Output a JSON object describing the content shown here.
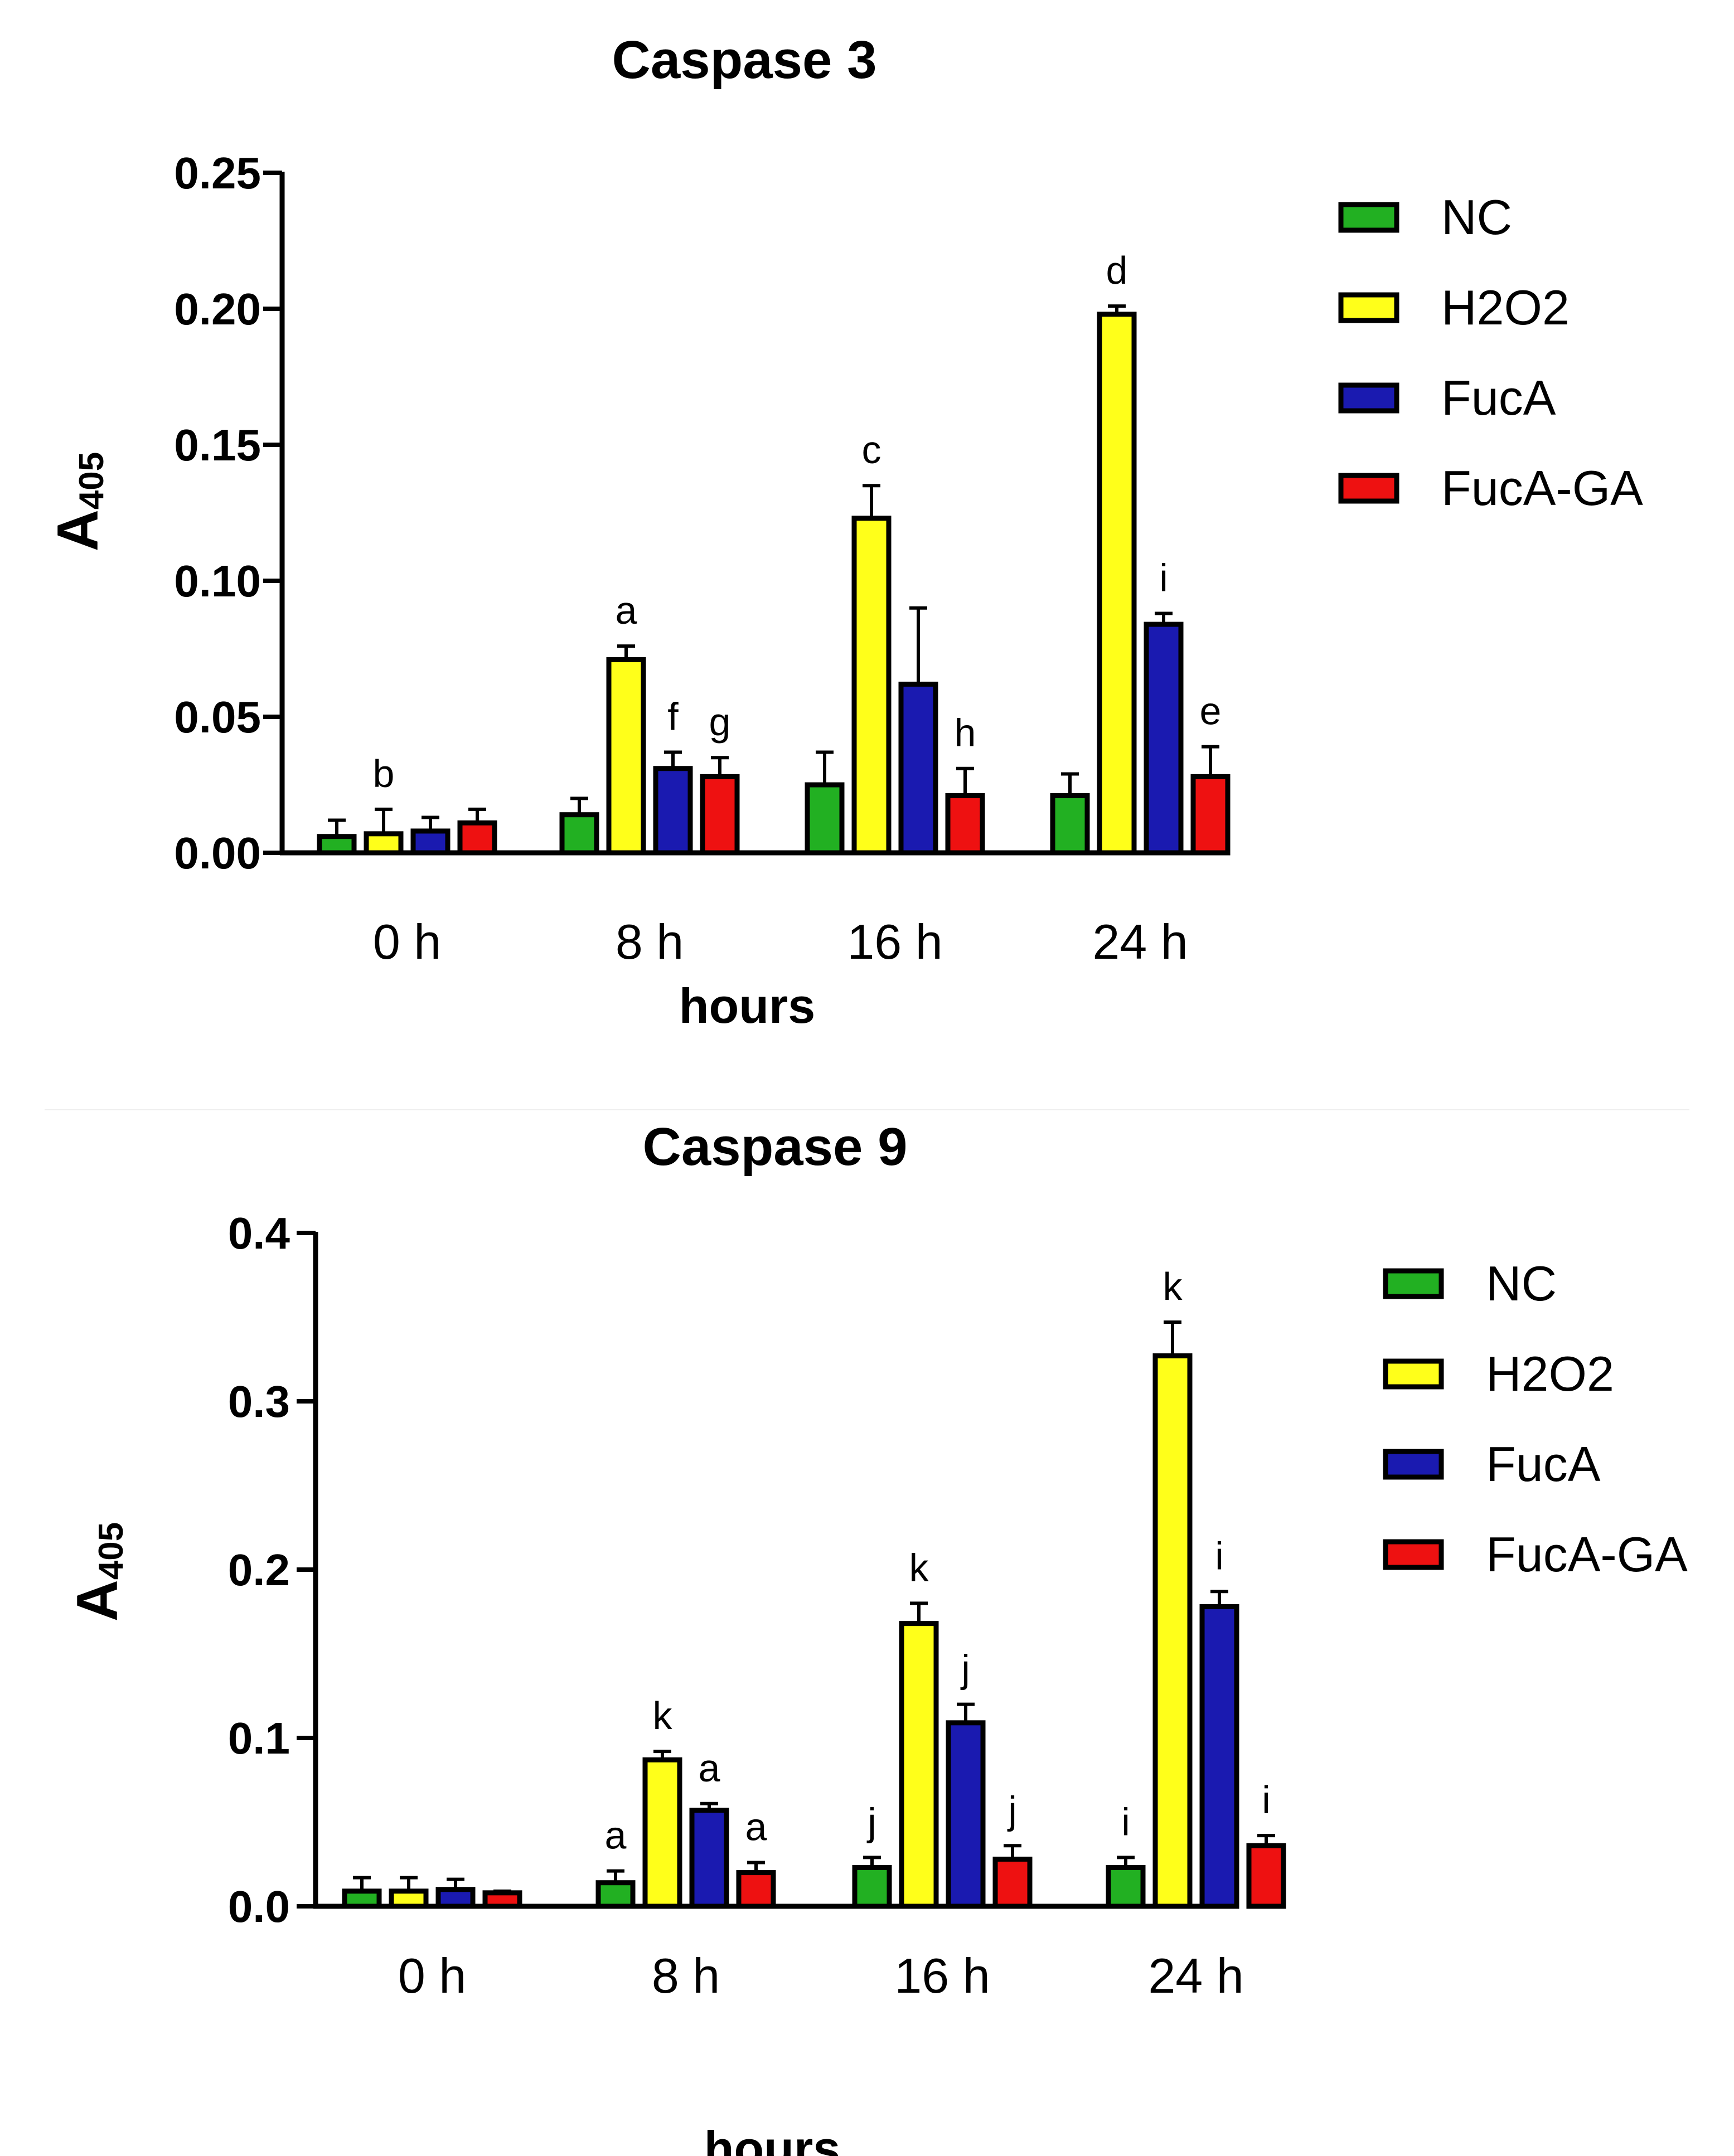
{
  "colors": {
    "NC": "#22b022",
    "H2O2": "#ffff1a",
    "FucA": "#1a1ab0",
    "FucA-GA": "#ee1111",
    "outline": "#000000"
  },
  "chart_data": [
    {
      "type": "bar",
      "title": "Caspase 3",
      "xlabel": "hours",
      "ylabel": {
        "main": "A",
        "sub": "405"
      },
      "categories": [
        "0 h",
        "8 h",
        "16 h",
        "24 h"
      ],
      "ylim": [
        0,
        0.25
      ],
      "yticks": [
        0.0,
        0.05,
        0.1,
        0.15,
        0.2,
        0.25
      ],
      "ytick_labels": [
        "0.00",
        "0.05",
        "0.10",
        "0.15",
        "0.20",
        "0.25"
      ],
      "legend": [
        "NC",
        "H2O2",
        "FucA",
        "FucA-GA"
      ],
      "legend_position": "top-right",
      "series": [
        {
          "name": "NC",
          "values": [
            0.006,
            0.014,
            0.025,
            0.021
          ],
          "errors": [
            0.006,
            0.006,
            0.012,
            0.008
          ]
        },
        {
          "name": "H2O2",
          "values": [
            0.007,
            0.071,
            0.123,
            0.198
          ],
          "errors": [
            0.009,
            0.005,
            0.012,
            0.003
          ]
        },
        {
          "name": "FucA",
          "values": [
            0.008,
            0.031,
            0.062,
            0.084
          ],
          "errors": [
            0.005,
            0.006,
            0.028,
            0.004
          ]
        },
        {
          "name": "FucA-GA",
          "values": [
            0.011,
            0.028,
            0.021,
            0.028
          ],
          "errors": [
            0.005,
            0.007,
            0.01,
            0.011
          ]
        }
      ],
      "annotations": [
        {
          "series": "H2O2",
          "category": "0 h",
          "text": "b"
        },
        {
          "series": "H2O2",
          "category": "8 h",
          "text": "a"
        },
        {
          "series": "FucA",
          "category": "8 h",
          "text": "f"
        },
        {
          "series": "FucA-GA",
          "category": "8 h",
          "text": "g"
        },
        {
          "series": "H2O2",
          "category": "16 h",
          "text": "c"
        },
        {
          "series": "FucA-GA",
          "category": "16 h",
          "text": "h"
        },
        {
          "series": "H2O2",
          "category": "24 h",
          "text": "d"
        },
        {
          "series": "FucA",
          "category": "24 h",
          "text": "i"
        },
        {
          "series": "FucA-GA",
          "category": "24 h",
          "text": "e"
        }
      ]
    },
    {
      "type": "bar",
      "title": "Caspase 9",
      "xlabel": "hours",
      "ylabel": {
        "main": "A",
        "sub": "405"
      },
      "categories": [
        "0 h",
        "8 h",
        "16 h",
        "24 h"
      ],
      "ylim": [
        0,
        0.4
      ],
      "yticks": [
        0.0,
        0.1,
        0.2,
        0.3,
        0.4
      ],
      "ytick_labels": [
        "0.0",
        "0.1",
        "0.2",
        "0.3",
        "0.4"
      ],
      "legend": [
        "NC",
        "H2O2",
        "FucA",
        "FucA-GA"
      ],
      "legend_position": "top-right",
      "series": [
        {
          "name": "NC",
          "values": [
            0.009,
            0.014,
            0.023,
            0.023
          ],
          "errors": [
            0.008,
            0.007,
            0.006,
            0.006
          ]
        },
        {
          "name": "H2O2",
          "values": [
            0.009,
            0.087,
            0.168,
            0.327
          ],
          "errors": [
            0.008,
            0.005,
            0.012,
            0.02
          ]
        },
        {
          "name": "FucA",
          "values": [
            0.01,
            0.057,
            0.109,
            0.178
          ],
          "errors": [
            0.006,
            0.004,
            0.011,
            0.009
          ]
        },
        {
          "name": "FucA-GA",
          "values": [
            0.008,
            0.02,
            0.028,
            0.036
          ],
          "errors": [
            0.001,
            0.006,
            0.008,
            0.006
          ]
        }
      ],
      "annotations": [
        {
          "series": "NC",
          "category": "8 h",
          "text": "a"
        },
        {
          "series": "H2O2",
          "category": "8 h",
          "text": "k"
        },
        {
          "series": "FucA",
          "category": "8 h",
          "text": "a"
        },
        {
          "series": "FucA-GA",
          "category": "8 h",
          "text": "a"
        },
        {
          "series": "NC",
          "category": "16 h",
          "text": "j"
        },
        {
          "series": "H2O2",
          "category": "16 h",
          "text": "k"
        },
        {
          "series": "FucA",
          "category": "16 h",
          "text": "j"
        },
        {
          "series": "FucA-GA",
          "category": "16 h",
          "text": "j"
        },
        {
          "series": "NC",
          "category": "24 h",
          "text": "i"
        },
        {
          "series": "H2O2",
          "category": "24 h",
          "text": "k"
        },
        {
          "series": "FucA",
          "category": "24 h",
          "text": "i"
        },
        {
          "series": "FucA-GA",
          "category": "24 h",
          "text": "i"
        }
      ]
    }
  ]
}
